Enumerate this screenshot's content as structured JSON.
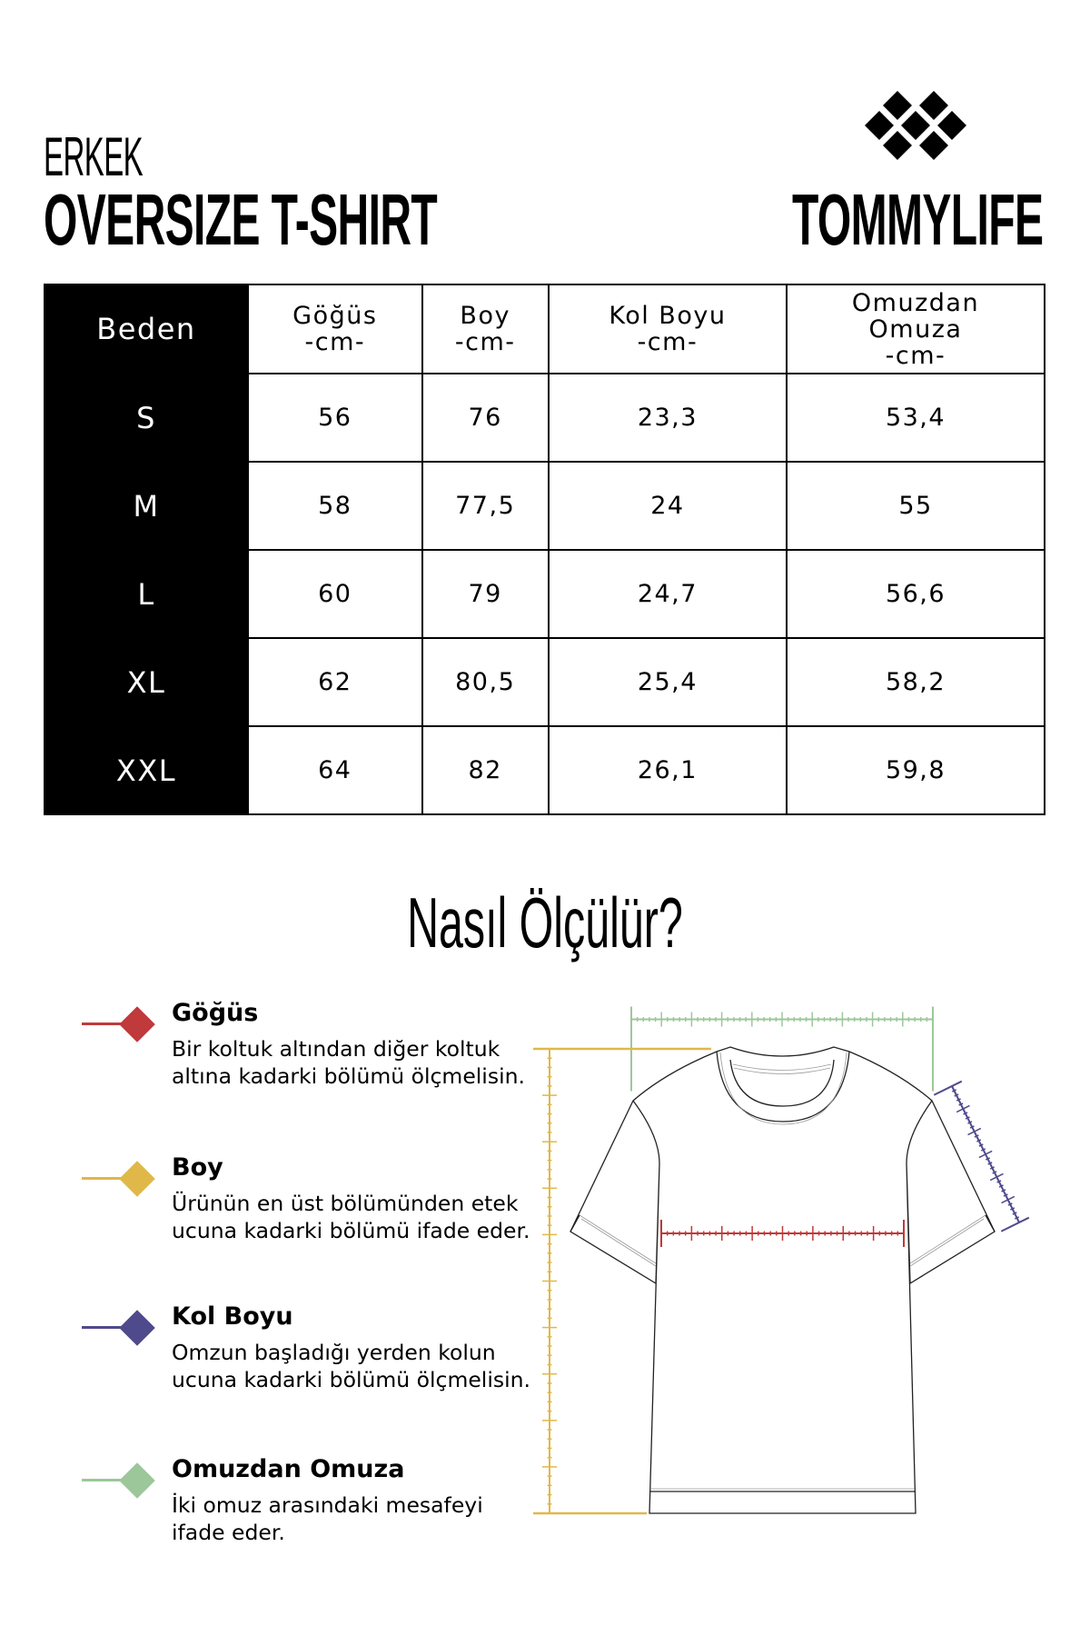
{
  "header": {
    "subtitle": "ERKEK",
    "title": "OVERSIZE T-SHIRT",
    "brand": "TOMMYLIFE"
  },
  "table": {
    "headers": [
      {
        "l1": "Beden",
        "l2": "",
        "l3": ""
      },
      {
        "l1": "Göğüs",
        "l2": "-cm-",
        "l3": ""
      },
      {
        "l1": "Boy",
        "l2": "-cm-",
        "l3": ""
      },
      {
        "l1": "Kol Boyu",
        "l2": "-cm-",
        "l3": ""
      },
      {
        "l1": "Omuzdan",
        "l2": "Omuza",
        "l3": "-cm-"
      }
    ],
    "rows": [
      [
        "S",
        "56",
        "76",
        "23,3",
        "53,4"
      ],
      [
        "M",
        "58",
        "77,5",
        "24",
        "55"
      ],
      [
        "L",
        "60",
        "79",
        "24,7",
        "56,6"
      ],
      [
        "XL",
        "62",
        "80,5",
        "25,4",
        "58,2"
      ],
      [
        "XXL",
        "64",
        "82",
        "26,1",
        "59,8"
      ]
    ]
  },
  "how_to": {
    "title": "Nasıl Ölçülür?",
    "items": [
      {
        "title": "Göğüs",
        "desc": "Bir koltuk altından diğer koltuk altına kadarki bölümü ölçmelisin.",
        "color": "#c0393b"
      },
      {
        "title": "Boy",
        "desc": "Ürünün en üst bölümünden etek ucuna kadarki bölümü ifade eder.",
        "color": "#e0b84a"
      },
      {
        "title": "Kol Boyu",
        "desc": "Omzun başladığı yerden kolun ucuna kadarki bölümü ölçmelisin.",
        "color": "#4f4a8c"
      },
      {
        "title": "Omuzdan Omuza",
        "desc": "İki omuz arasındaki mesafeyi ifade eder.",
        "color": "#9cc79a"
      }
    ]
  }
}
